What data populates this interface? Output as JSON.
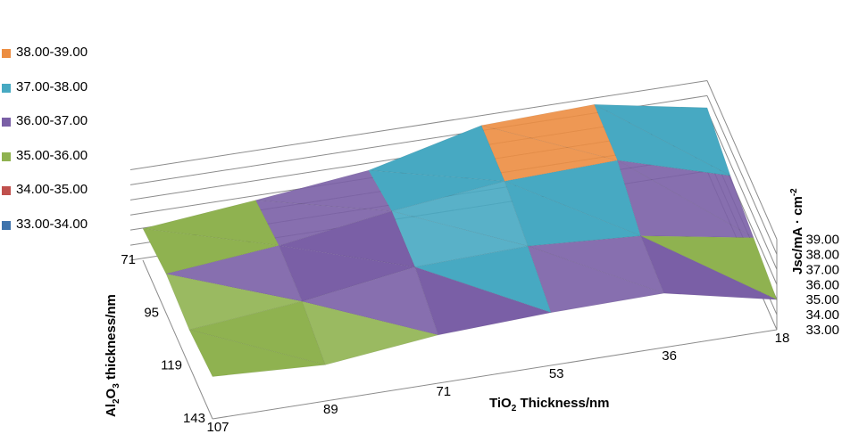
{
  "chart_data": {
    "type": "surface",
    "axes": {
      "x": {
        "title": "TiO2 Thickness/nm",
        "title_parts": [
          "TiO",
          "2",
          " Thickness/nm"
        ],
        "ticks": [
          107,
          89,
          71,
          53,
          36,
          18
        ]
      },
      "y": {
        "title": "Al2O3 thickness/nm",
        "title_parts": [
          "Al",
          "2",
          "O",
          "3",
          " thickness/nm"
        ],
        "ticks": [
          71,
          95,
          119,
          143
        ]
      },
      "z": {
        "title": "Jsc/mA·cm-2",
        "title_parts": [
          "Jsc/mA",
          " · ",
          "cm",
          "-2"
        ],
        "ticks": [
          "33.00",
          "34.00",
          "35.00",
          "36.00",
          "37.00",
          "38.00",
          "39.00"
        ],
        "range": [
          33,
          39
        ]
      }
    },
    "legend": [
      {
        "label": "38.00-39.00",
        "color": "#ec8d41"
      },
      {
        "label": "37.00-38.00",
        "color": "#47a9c2"
      },
      {
        "label": "36.00-37.00",
        "color": "#7a5fa6"
      },
      {
        "label": "35.00-36.00",
        "color": "#8fb250"
      },
      {
        "label": "34.00-35.00",
        "color": "#c0504d"
      },
      {
        "label": "33.00-34.00",
        "color": "#3f73ac"
      }
    ],
    "bands": [
      {
        "from": 38,
        "to": 39,
        "color": "#ec8d41"
      },
      {
        "from": 37,
        "to": 38,
        "color": "#47a9c2"
      },
      {
        "from": 36,
        "to": 37,
        "color": "#7a5fa6"
      },
      {
        "from": 35,
        "to": 36,
        "color": "#8fb250"
      },
      {
        "from": 34,
        "to": 35,
        "color": "#c0504d"
      },
      {
        "from": 33,
        "to": 34,
        "color": "#3f73ac"
      }
    ],
    "surface_jsc": {
      "note_rows": "rows follow y ticks (71, 95, 119, 143); columns follow x ticks (107, 89, 71, 53, 36, 18)",
      "values": [
        [
          35.1,
          35.8,
          36.6,
          38.4,
          38.6,
          37.2
        ],
        [
          35.6,
          36.3,
          37.4,
          38.2,
          38.4,
          36.2
        ],
        [
          35.4,
          36.1,
          37.2,
          37.4,
          36.9,
          35.6
        ],
        [
          35.8,
          35.4,
          36.2,
          36.5,
          36.6,
          35.0
        ]
      ]
    }
  }
}
